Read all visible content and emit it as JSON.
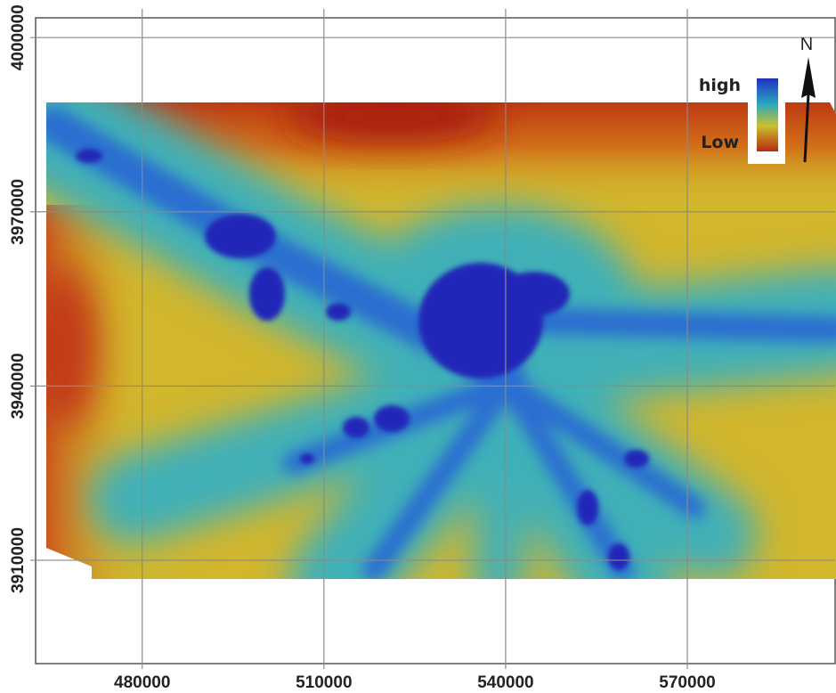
{
  "map": {
    "xlim": [
      462400,
      594400
    ],
    "ylim": [
      3892200,
      4003400
    ],
    "xticks": [
      480000,
      510000,
      540000,
      570000
    ],
    "yticks": [
      3910000,
      3940000,
      3970000,
      4000000
    ],
    "legend": {
      "high": "high",
      "low": "Low"
    },
    "north": "N"
  }
}
